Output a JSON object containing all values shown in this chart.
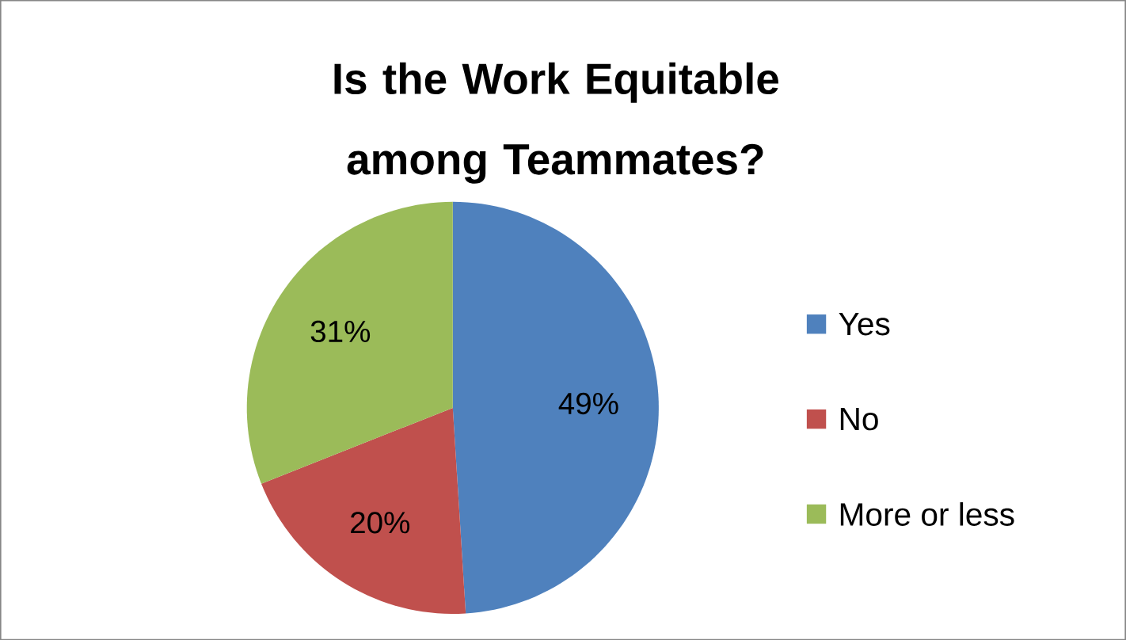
{
  "chart_data": {
    "type": "pie",
    "title": "Is the Work Equitable among Teammates?",
    "categories": [
      "Yes",
      "No",
      "More or less"
    ],
    "values": [
      49,
      20,
      31
    ],
    "value_labels": [
      "49%",
      "20%",
      "31%"
    ],
    "colors": [
      "#4f81bd",
      "#c0504d",
      "#9bbb59"
    ],
    "legend": "right"
  }
}
